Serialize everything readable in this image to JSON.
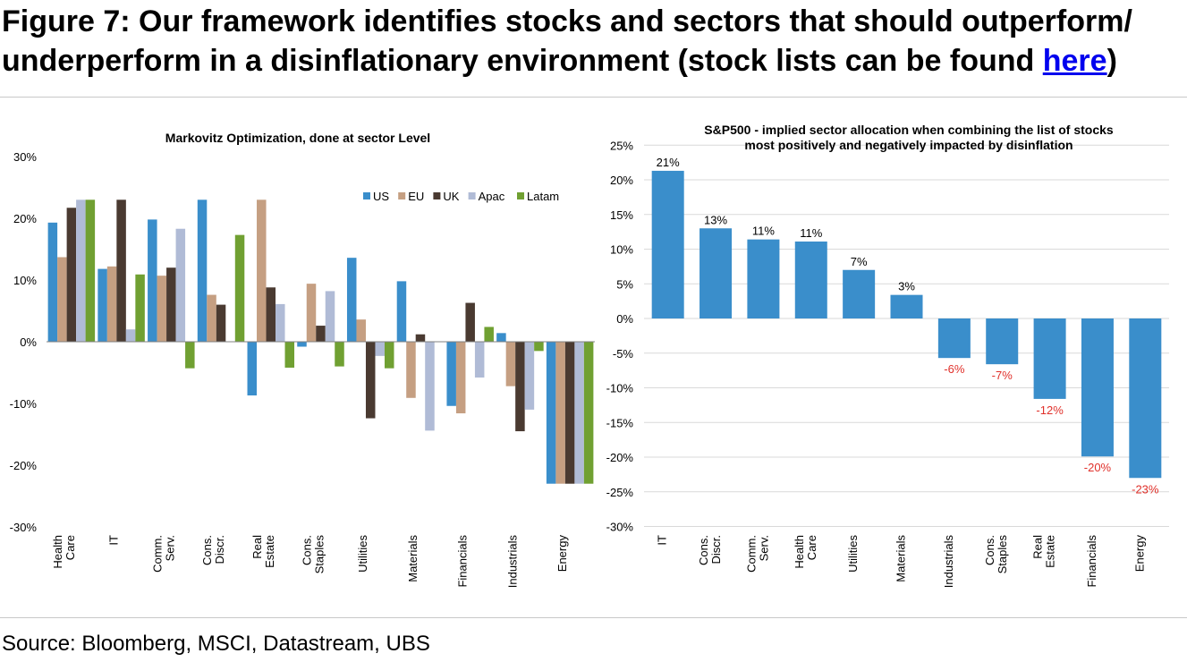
{
  "figure": {
    "title_main": "Figure 7: Our framework identifies stocks and sectors that should outperform/ underperform in a disinflationary environment (stock lists can be found ",
    "title_link": "here",
    "title_end": ")",
    "source": "Source: Bloomberg, MSCI, Datastream, UBS"
  },
  "colors": {
    "US": "#3a8ecb",
    "EU": "#c59f82",
    "UK": "#4a3a31",
    "Apac": "#b0bbd6",
    "Latam": "#70a032",
    "bar_right": "#3a8ecb",
    "negative_label": "#e0302a"
  },
  "chart_data": [
    {
      "type": "bar",
      "title": "Markovitz Optimization, done at sector Level",
      "categories": [
        "Health Care",
        "IT",
        "Comm. Serv.",
        "Cons. Discr.",
        "Real Estate",
        "Cons. Staples",
        "Utilities",
        "Materials",
        "Financials",
        "Industrials",
        "Energy"
      ],
      "series": [
        {
          "name": "US",
          "values": [
            19.3,
            11.8,
            19.8,
            23.0,
            -8.7,
            -0.8,
            13.6,
            9.8,
            -10.4,
            1.4,
            -23.0
          ]
        },
        {
          "name": "EU",
          "values": [
            13.7,
            12.2,
            10.7,
            7.6,
            23.0,
            9.4,
            3.6,
            -9.1,
            -11.6,
            -7.2,
            -23.0
          ]
        },
        {
          "name": "UK",
          "values": [
            21.7,
            23.0,
            12.0,
            6.0,
            8.8,
            2.6,
            -12.4,
            1.2,
            6.3,
            -14.5,
            -23.0
          ]
        },
        {
          "name": "Apac",
          "values": [
            23.0,
            2.0,
            18.3,
            0.0,
            6.1,
            8.2,
            -2.3,
            -14.4,
            -5.8,
            -11.0,
            -23.0
          ]
        },
        {
          "name": "Latam",
          "values": [
            23.0,
            10.9,
            -4.3,
            17.3,
            -4.2,
            -4.0,
            -4.3,
            0.0,
            2.4,
            -1.5,
            -23.0
          ]
        }
      ],
      "ylim": [
        -30,
        30
      ],
      "yticks": [
        "-30%",
        "-20%",
        "-10%",
        "0%",
        "10%",
        "20%",
        "30%"
      ],
      "legend_position": "top-right"
    },
    {
      "type": "bar",
      "title_line1": "S&P500 - implied sector allocation when combining the list of stocks",
      "title_line2": "most positively and negatively impacted by disinflation",
      "categories": [
        "IT",
        "Cons. Discr.",
        "Comm. Serv.",
        "Health Care",
        "Utilities",
        "Materials",
        "Industrials",
        "Cons. Staples",
        "Real Estate",
        "Financials",
        "Energy"
      ],
      "values": [
        21.3,
        13.0,
        11.4,
        11.1,
        7.0,
        3.4,
        -5.7,
        -6.6,
        -11.6,
        -19.9,
        -23.0
      ],
      "data_labels": [
        "21%",
        "13%",
        "11%",
        "11%",
        "7%",
        "3%",
        "-6%",
        "-7%",
        "-12%",
        "-20%",
        "-23%"
      ],
      "ylim": [
        -30,
        25
      ],
      "yticks": [
        "-30%",
        "-25%",
        "-20%",
        "-15%",
        "-10%",
        "-5%",
        "0%",
        "5%",
        "10%",
        "15%",
        "20%",
        "25%"
      ],
      "grid": true
    }
  ]
}
